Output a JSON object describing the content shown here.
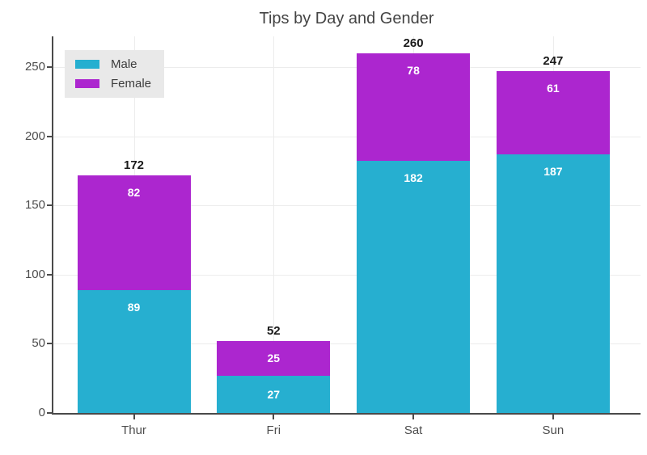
{
  "title": "Tips by Day and Gender",
  "colors": {
    "male": "#26AFD0",
    "female": "#AC26CF",
    "axis": "#4a4a4a",
    "grid": "#ececec",
    "title_text": "#444444",
    "tick_text": "#4d4d4d",
    "total_label_text": "#1a1a1a",
    "segment_label_text": "#ffffff",
    "legend_bg": "#e9e9e9"
  },
  "legend": {
    "position": "top-left",
    "items": [
      {
        "label": "Male",
        "color": "#26AFD0"
      },
      {
        "label": "Female",
        "color": "#AC26CF"
      }
    ]
  },
  "chart_data": {
    "type": "bar",
    "stacked": true,
    "title": "Tips by Day and Gender",
    "categories": [
      "Thur",
      "Fri",
      "Sat",
      "Sun"
    ],
    "series": [
      {
        "name": "Male",
        "color": "#26AFD0",
        "values": [
          89,
          27,
          182,
          187
        ]
      },
      {
        "name": "Female",
        "color": "#AC26CF",
        "values": [
          82,
          25,
          78,
          61
        ]
      }
    ],
    "totals": [
      172,
      52,
      260,
      247
    ],
    "xlabel": "",
    "ylabel": "",
    "yticks": [
      0,
      50,
      100,
      150,
      200,
      250
    ],
    "ylim": [
      0,
      273
    ],
    "grid": true,
    "legend_position": "top-left"
  }
}
